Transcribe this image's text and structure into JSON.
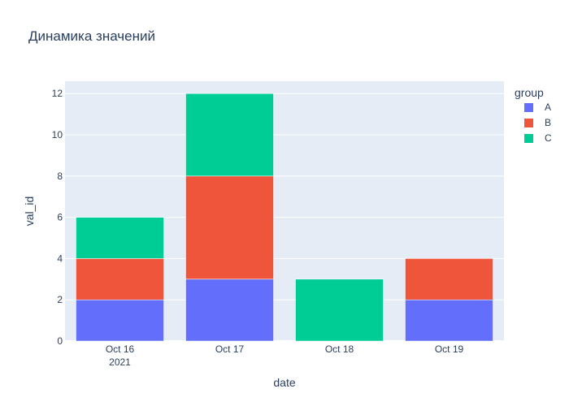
{
  "chart_data": {
    "type": "bar",
    "barmode": "stack",
    "title": "Динамика значений",
    "xlabel": "date",
    "ylabel": "val_id",
    "categories": [
      "Oct 16",
      "Oct 17",
      "Oct 18",
      "Oct 19"
    ],
    "x_year_label": "2021",
    "ylim": [
      0,
      12.6
    ],
    "y_ticks": [
      0,
      2,
      4,
      6,
      8,
      10,
      12
    ],
    "grid": true,
    "legend": {
      "title": "group",
      "placement": "top-right"
    },
    "series": [
      {
        "name": "A",
        "color": "#636efa",
        "values": [
          2,
          3,
          0,
          2
        ]
      },
      {
        "name": "B",
        "color": "#ef553b",
        "values": [
          2,
          5,
          0,
          2
        ]
      },
      {
        "name": "C",
        "color": "#00cc96",
        "values": [
          2,
          4,
          3,
          0
        ]
      }
    ]
  },
  "colors": {
    "plot_background": "#e5ecf6",
    "gridline": "#ffffff",
    "text": "#2a3f5f"
  }
}
